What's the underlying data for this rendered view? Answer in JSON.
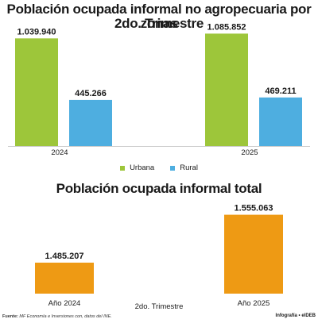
{
  "chart_data": [
    {
      "type": "bar",
      "title_line1": "Población ocupada informal no agropecuaria por zonas",
      "title_line2": "2do. Trimestre",
      "categories": [
        "2024",
        "2025"
      ],
      "series": [
        {
          "name": "Urbana",
          "color": "#9dc63a",
          "values": [
            1039940,
            1085852
          ],
          "labels": [
            "1.039.940",
            "1.085.852"
          ]
        },
        {
          "name": "Rural",
          "color": "#4eaee0",
          "values": [
            445266,
            469211
          ],
          "labels": [
            "445.266",
            "469.211"
          ]
        }
      ],
      "ylim": [
        0,
        1150000
      ],
      "legend": "bottom"
    },
    {
      "type": "bar",
      "title": "Población ocupada informal total",
      "categories": [
        "Año 2024",
        "Año 2025"
      ],
      "values": [
        1485207,
        1555063
      ],
      "labels": [
        "1.485.207",
        "1.555.063"
      ],
      "color": "#ee9a14",
      "subtitle": "2do. Trimestre",
      "ylim": [
        1440000,
        1565000
      ]
    }
  ],
  "footer": {
    "source_label": "Fuente:",
    "source_text": " MF Economía e Inversiones con, datos del INE.",
    "credit": "Infografía • elDEB"
  }
}
